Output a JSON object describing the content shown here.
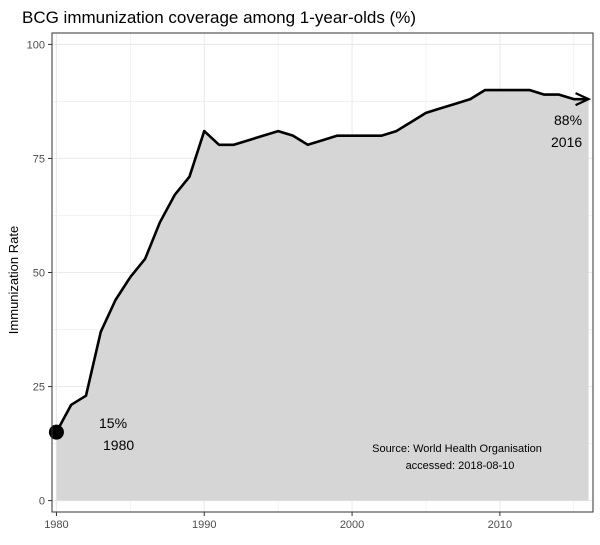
{
  "chart_data": {
    "type": "area",
    "title": "BCG immunization coverage among 1-year-olds (%)",
    "xlabel": "",
    "ylabel": "Immunization Rate",
    "xlim": [
      1979.7,
      2016.3
    ],
    "ylim": [
      -2.5,
      102.5
    ],
    "x_ticks": [
      1980,
      1990,
      2000,
      2010
    ],
    "y_ticks": [
      0,
      25,
      50,
      75,
      100
    ],
    "grid": true,
    "x": [
      1980,
      1981,
      1982,
      1983,
      1984,
      1985,
      1986,
      1987,
      1988,
      1989,
      1990,
      1991,
      1992,
      1993,
      1994,
      1995,
      1996,
      1997,
      1998,
      1999,
      2000,
      2001,
      2002,
      2003,
      2004,
      2005,
      2006,
      2007,
      2008,
      2009,
      2010,
      2011,
      2012,
      2013,
      2014,
      2015,
      2016
    ],
    "values": [
      15,
      21,
      23,
      37,
      44,
      49,
      53,
      61,
      67,
      71,
      81,
      78,
      78,
      79,
      80,
      81,
      80,
      78,
      79,
      80,
      80,
      80,
      80,
      81,
      83,
      85,
      86,
      87,
      88,
      90,
      90,
      90,
      90,
      89,
      89,
      88,
      88
    ],
    "start_label": {
      "value": "15%",
      "year": "1980"
    },
    "end_label": {
      "value": "88%",
      "year": "2016"
    },
    "source_line1": "Source: World Health Organisation",
    "source_line2": "accessed: 2018-08-10",
    "colors": {
      "fill": "#d6d6d6",
      "line": "#000000",
      "grid": "#ebebeb",
      "border": "#333333"
    }
  }
}
